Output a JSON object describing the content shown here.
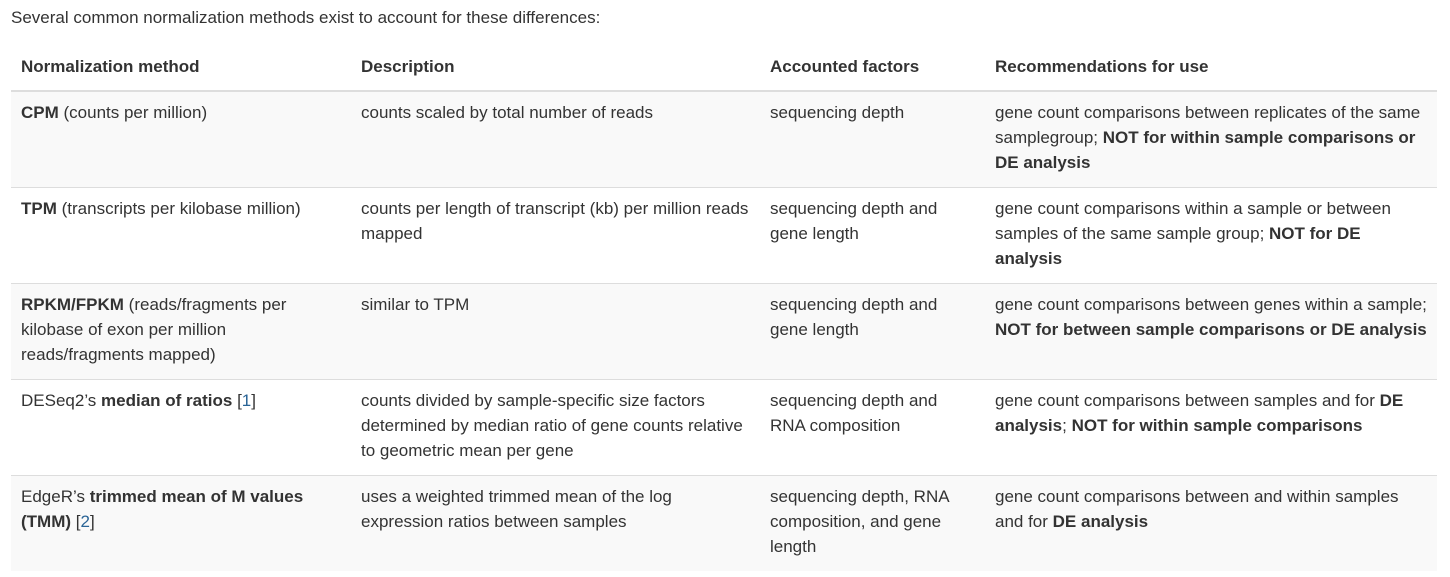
{
  "intro": "Several common normalization methods exist to account for these differences:",
  "headers": {
    "method": "Normalization method",
    "description": "Description",
    "factors": "Accounted factors",
    "recommendations": "Recommendations for use"
  },
  "rows": [
    {
      "method_prefix": "",
      "method_bold": "CPM",
      "method_suffix": " (counts per million)",
      "ref_open": "",
      "ref": "",
      "ref_close": "",
      "description": "counts scaled by total number of reads",
      "factors": "sequencing depth",
      "rec_a": "gene count comparisons between replicates of the same samplegroup; ",
      "rec_b": "NOT for within sample comparisons or DE analysis",
      "rec_c": "",
      "rec_d": ""
    },
    {
      "method_prefix": "",
      "method_bold": "TPM",
      "method_suffix": " (transcripts per kilobase million)",
      "ref_open": "",
      "ref": "",
      "ref_close": "",
      "description": "counts per length of transcript (kb) per million reads mapped",
      "factors": "sequencing depth and gene length",
      "rec_a": "gene count comparisons within a sample or between samples of the same sample group; ",
      "rec_b": "NOT for DE analysis",
      "rec_c": "",
      "rec_d": ""
    },
    {
      "method_prefix": "",
      "method_bold": "RPKM/FPKM",
      "method_suffix": " (reads/fragments per kilobase of exon per million reads/fragments mapped)",
      "ref_open": "",
      "ref": "",
      "ref_close": "",
      "description": "similar to TPM",
      "factors": "sequencing depth and gene length",
      "rec_a": "gene count comparisons between genes within a sample; ",
      "rec_b": "NOT for between sample comparisons or DE analysis",
      "rec_c": "",
      "rec_d": ""
    },
    {
      "method_prefix": "DESeq2’s ",
      "method_bold": "median of ratios",
      "method_suffix": " ",
      "ref_open": "[",
      "ref": "1",
      "ref_close": "]",
      "description": "counts divided by sample-specific size factors determined by median ratio of gene counts relative to geometric mean per gene",
      "factors": "sequencing depth and RNA composition",
      "rec_a": "gene count comparisons between samples and for ",
      "rec_b": "DE analysis",
      "rec_c": "; ",
      "rec_d": "NOT for within sample comparisons"
    },
    {
      "method_prefix": "EdgeR’s ",
      "method_bold": "trimmed mean of M values (TMM)",
      "method_suffix": " ",
      "ref_open": "[",
      "ref": "2",
      "ref_close": "]",
      "description": "uses a weighted trimmed mean of the log expression ratios between samples",
      "factors": "sequencing depth, RNA composition, and gene length",
      "rec_a": "gene count comparisons between and within samples and for ",
      "rec_b": "DE analysis",
      "rec_c": "",
      "rec_d": ""
    }
  ]
}
